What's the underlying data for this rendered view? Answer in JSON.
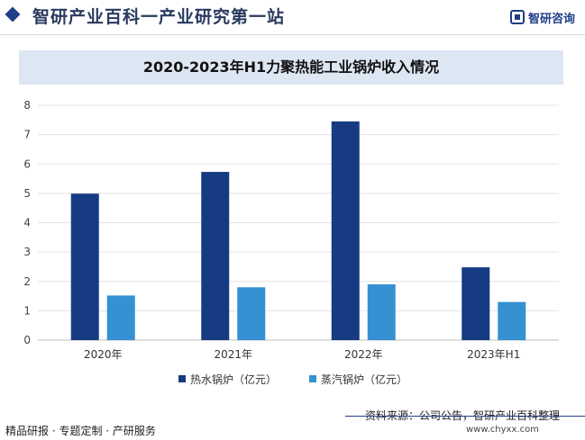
{
  "header": {
    "site_title": "智研产业百科一产业研究第一站",
    "brand_name": "智研咨询"
  },
  "footer": {
    "left": "精品研报 · 专题定制 · 产研服务",
    "source": "资料来源：公司公告，智研产业百科整理",
    "url": "www.chyxx.com"
  },
  "chart_data": {
    "type": "bar",
    "title": "2020-2023年H1力聚热能工业锅炉收入情况",
    "categories": [
      "2020年",
      "2021年",
      "2022年",
      "2023年H1"
    ],
    "series": [
      {
        "name": "热水锅炉（亿元）",
        "values": [
          4.99,
          5.73,
          7.45,
          2.48
        ],
        "color": "#173b82"
      },
      {
        "name": "蒸汽锅炉（亿元）",
        "values": [
          1.52,
          1.8,
          1.9,
          1.3
        ],
        "color": "#3591d1"
      }
    ],
    "ylim": [
      0,
      8
    ],
    "yticks": [
      0,
      1,
      2,
      3,
      4,
      5,
      6,
      7,
      8
    ],
    "grid": true,
    "legend_position": "bottom"
  }
}
